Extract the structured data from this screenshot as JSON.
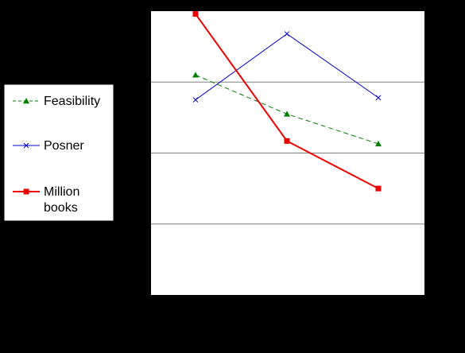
{
  "chart_data": {
    "type": "line",
    "categories": [
      "",
      "",
      ""
    ],
    "ylim": [
      0,
      4
    ],
    "grid": true,
    "legend_position": "left",
    "series": [
      {
        "name": "Feasibility",
        "color": "#008000",
        "line_style": "dashed",
        "marker": "triangle",
        "values": [
          3.1,
          2.55,
          2.13
        ]
      },
      {
        "name": "Posner",
        "color": "#0000cc",
        "line_style": "solid",
        "marker": "x",
        "values": [
          2.75,
          3.68,
          2.78
        ]
      },
      {
        "name": "Million books",
        "color": "#ee0000",
        "line_style": "solid",
        "marker": "square",
        "values": [
          3.96,
          2.17,
          1.5
        ]
      }
    ]
  },
  "colors": {
    "background": "#000000",
    "plot_area": "#ffffff",
    "gridline": "#808080"
  }
}
